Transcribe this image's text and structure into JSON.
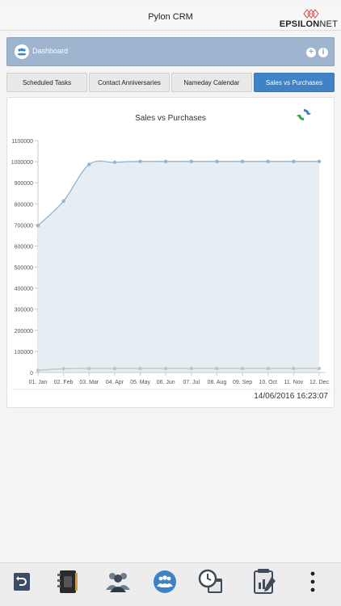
{
  "app": {
    "title": "Pylon CRM",
    "brand_prefix": "EPSILON",
    "brand_suffix": "NET"
  },
  "dashboard": {
    "label": "Dashboard"
  },
  "tabs": [
    {
      "label": "Scheduled Tasks",
      "active": false
    },
    {
      "label": "Contact Anniversaries",
      "active": false
    },
    {
      "label": "Nameday Calendar",
      "active": false
    },
    {
      "label": "Sales vs Purchases",
      "active": true
    }
  ],
  "chart_data": {
    "type": "area",
    "title": "Sales vs Purchases",
    "categories": [
      "01. Jan",
      "02. Feb",
      "03. Mar",
      "04. Apr",
      "05. May",
      "06. Jun",
      "07. Jul",
      "08. Aug",
      "09. Sep",
      "10. Oct",
      "11. Nov",
      "12. Dec"
    ],
    "series": [
      {
        "values": [
          697000,
          813000,
          987000,
          997000,
          1001000,
          1001000,
          1001000,
          1001000,
          1001000,
          1001000,
          1001000,
          1001000
        ],
        "color": "#8fb5cf"
      },
      {
        "values": [
          10000,
          18000,
          19000,
          19000,
          19000,
          19000,
          19000,
          19000,
          19000,
          19000,
          19000,
          19000
        ],
        "color": "#b8c8c8"
      }
    ],
    "yticks": [
      0,
      100000,
      200000,
      300000,
      400000,
      500000,
      600000,
      700000,
      800000,
      900000,
      1000000,
      1100000
    ],
    "ylim": [
      0,
      1100000
    ],
    "grid": false
  },
  "timestamp": "14/06/2016 16:23:07",
  "colors": {
    "accent": "#3f83c6",
    "header": "#9fb4cf",
    "area_fill": "#e6eef3"
  },
  "nav_icons": [
    "back-icon",
    "address-book-icon",
    "contacts-group-icon",
    "dashboard-icon",
    "calendar-clock-icon",
    "report-icon",
    "more-vertical-icon"
  ]
}
